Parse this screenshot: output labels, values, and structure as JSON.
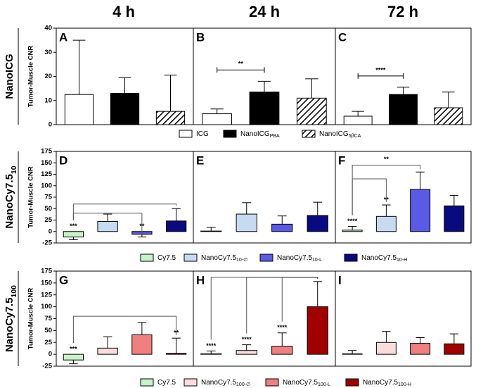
{
  "columns": [
    "4 h",
    "24 h",
    "72 h"
  ],
  "chart_data": [
    {
      "type": "bar",
      "row_label": "NanoICG",
      "row_label_sub": null,
      "y_label": "Tumor-Muscle CNR",
      "ylim": [
        0,
        40
      ],
      "yticks": [
        0,
        10,
        20,
        30,
        40
      ],
      "series": [
        {
          "name": "ICG",
          "sub": null,
          "color": "#ffffff"
        },
        {
          "name": "NanoICG",
          "sub": "PBA",
          "color": "#000000"
        },
        {
          "name": "NanoICG",
          "sub": "5βCA",
          "color": "hatch"
        }
      ],
      "panels": [
        {
          "letter": "A",
          "values": [
            12.5,
            13,
            5.5
          ],
          "errors": [
            22.5,
            6.5,
            15
          ],
          "significance": [
            null,
            null,
            null
          ],
          "bracket_label": null
        },
        {
          "letter": "B",
          "values": [
            4.5,
            13.5,
            11
          ],
          "errors": [
            2,
            4.5,
            8
          ],
          "significance": [
            null,
            null,
            null
          ],
          "bracket_label": "**"
        },
        {
          "letter": "C",
          "values": [
            3.5,
            12.5,
            7
          ],
          "errors": [
            2,
            3,
            6.5
          ],
          "significance": [
            null,
            null,
            null
          ],
          "bracket_label": "****"
        }
      ]
    },
    {
      "type": "bar",
      "row_label": "NanoCy7.5",
      "row_label_sub": "10",
      "y_label": "Tumor-Muscle CNR",
      "ylim": [
        -25,
        175
      ],
      "yticks": [
        -25,
        0,
        25,
        50,
        75,
        100,
        125,
        150,
        175
      ],
      "series": [
        {
          "name": "Cy7.5",
          "sub": null,
          "color": "#c8f2c8"
        },
        {
          "name": "NanoCy7.5",
          "sub": "10-∅",
          "color": "#c6daf2"
        },
        {
          "name": "NanoCy7.5",
          "sub": "10-L",
          "color": "#5a5ae6"
        },
        {
          "name": "NanoCy7.5",
          "sub": "10-H",
          "color": "#0a0a80"
        }
      ],
      "panels": [
        {
          "letter": "D",
          "values": [
            -12,
            22,
            -6,
            23
          ],
          "errors": [
            6,
            16,
            6,
            27
          ],
          "significance": [
            "***",
            null,
            "**",
            null
          ],
          "bracket_label": null
        },
        {
          "letter": "E",
          "values": [
            1,
            38,
            16,
            35
          ],
          "errors": [
            8,
            25,
            18,
            29
          ],
          "significance": [
            null,
            null,
            null,
            null
          ],
          "bracket_label": null
        },
        {
          "letter": "F",
          "values": [
            3,
            33,
            92,
            56
          ],
          "errors": [
            8,
            25,
            38,
            23
          ],
          "significance": [
            "****",
            "**",
            null,
            null
          ],
          "bracket_label": "**"
        }
      ]
    },
    {
      "type": "bar",
      "row_label": "NanoCy7.5",
      "row_label_sub": "100",
      "y_label": "Tumor-Muscle CNR",
      "ylim": [
        -25,
        175
      ],
      "yticks": [
        -25,
        0,
        25,
        50,
        75,
        100,
        125,
        150,
        175
      ],
      "series": [
        {
          "name": "Cy7.5",
          "sub": null,
          "color": "#c8f2c8"
        },
        {
          "name": "NanoCy7.5",
          "sub": "100-∅",
          "color": "#fadcdc"
        },
        {
          "name": "NanoCy7.5",
          "sub": "100-L",
          "color": "#f08080"
        },
        {
          "name": "NanoCy7.5",
          "sub": "100-H",
          "color": "#a00000"
        }
      ],
      "panels": [
        {
          "letter": "G",
          "values": [
            -12,
            13,
            41,
            2
          ],
          "errors": [
            8,
            24,
            26,
            32
          ],
          "significance": [
            "***",
            null,
            null,
            "**"
          ],
          "bracket_label": null
        },
        {
          "letter": "H",
          "values": [
            1,
            8,
            17,
            100
          ],
          "errors": [
            6,
            12,
            28,
            53
          ],
          "significance": [
            "****",
            "****",
            "****",
            null
          ],
          "bracket_label": null
        },
        {
          "letter": "I",
          "values": [
            1,
            25,
            23,
            22
          ],
          "errors": [
            7,
            23,
            12,
            21
          ],
          "significance": [
            null,
            null,
            null,
            null
          ],
          "bracket_label": null
        }
      ]
    }
  ]
}
